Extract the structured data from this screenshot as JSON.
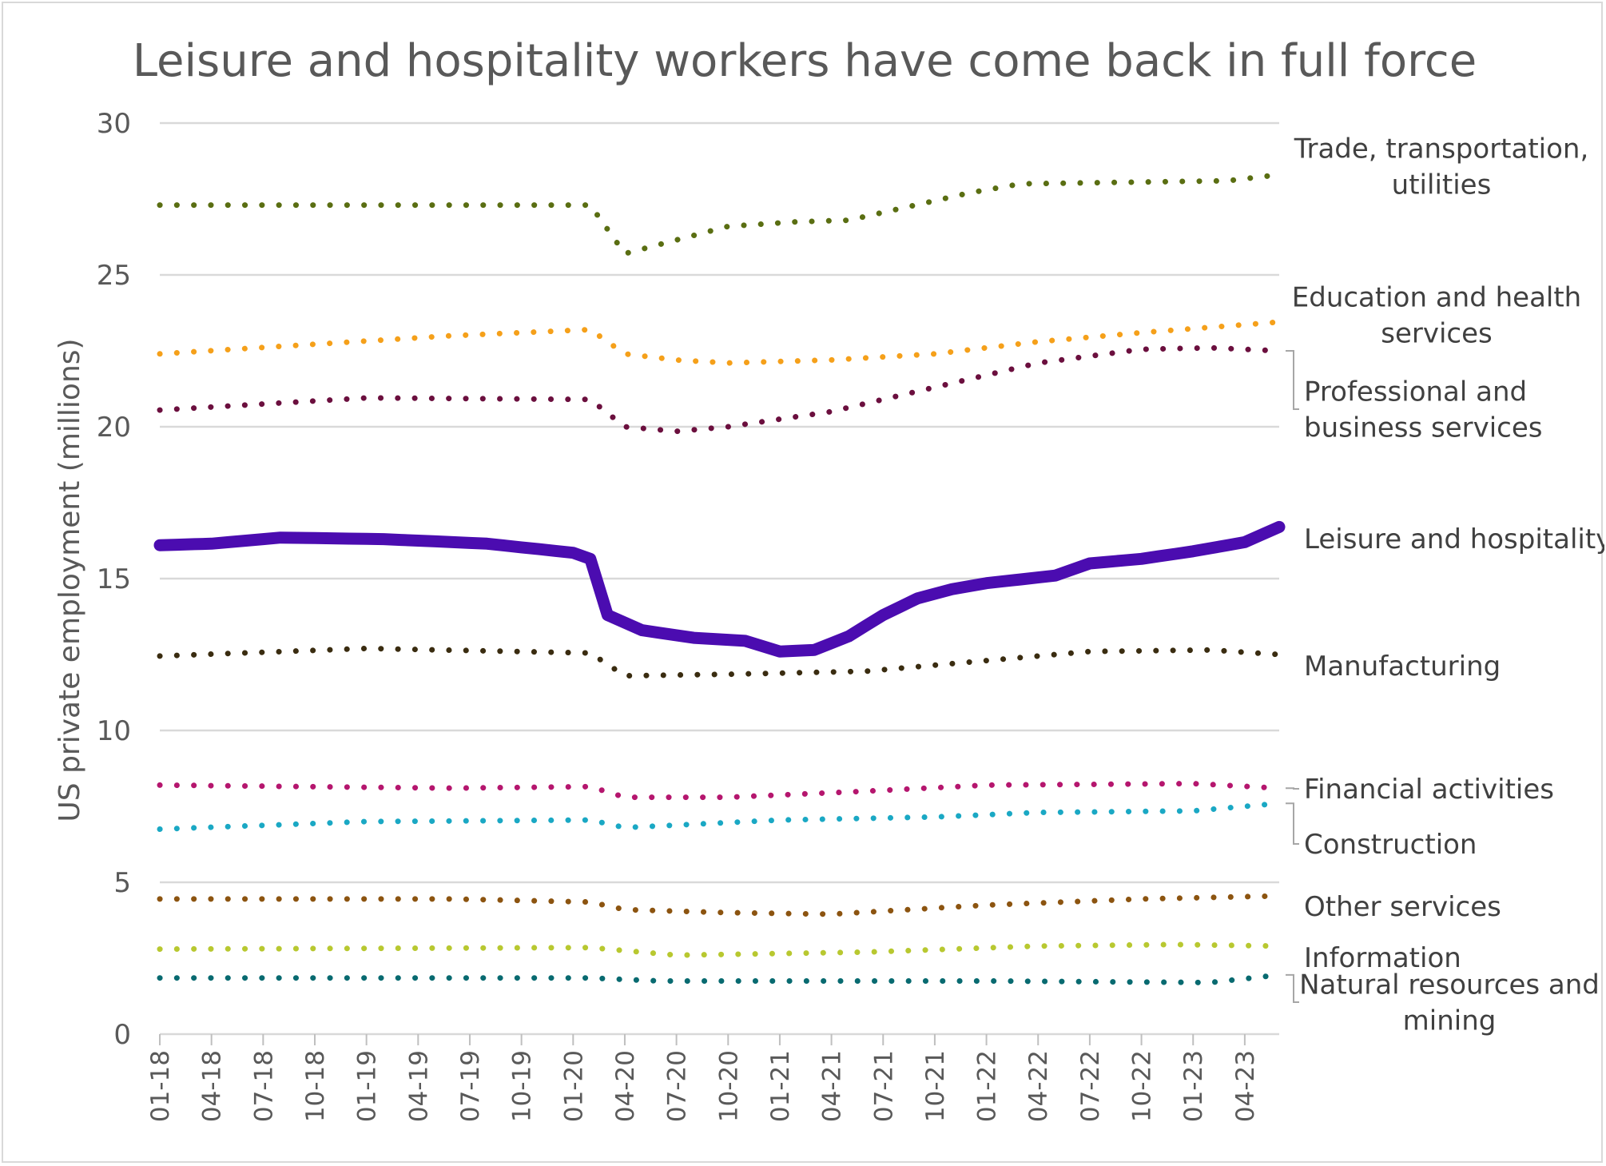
{
  "chart_data": {
    "type": "line",
    "title": "Leisure and hospitality workers have come back in full force",
    "xlabel": "",
    "ylabel": "US private employment (millions)",
    "ylim": [
      0,
      30
    ],
    "yticks": [
      "0",
      "5",
      "10",
      "15",
      "20",
      "25",
      "30"
    ],
    "xticks": [
      "01-18",
      "04-18",
      "07-18",
      "10-18",
      "01-19",
      "04-19",
      "07-19",
      "10-19",
      "01-20",
      "04-20",
      "07-20",
      "10-20",
      "01-21",
      "04-21",
      "07-21",
      "10-21",
      "01-22",
      "04-22",
      "07-22",
      "10-22",
      "01-23",
      "04-23"
    ],
    "x_start": "2018-01",
    "x_end": "2023-06",
    "grid": "horizontal",
    "legend": "direct labels on right",
    "series": [
      {
        "name": "Trade, transportation, utilities",
        "label_lines": [
          "Trade, transportation,",
          "utilities"
        ],
        "color": "#5a6e12",
        "style": "dotted",
        "knots": [
          [
            "2018-01",
            27.3
          ],
          [
            "2020-02",
            27.3
          ],
          [
            "2020-04",
            25.7
          ],
          [
            "2020-06",
            26.0
          ],
          [
            "2020-10",
            26.6
          ],
          [
            "2021-02",
            26.75
          ],
          [
            "2021-05",
            26.8
          ],
          [
            "2021-12",
            27.7
          ],
          [
            "2022-03",
            28.0
          ],
          [
            "2022-09",
            28.05
          ],
          [
            "2023-03",
            28.1
          ],
          [
            "2023-06",
            28.3
          ]
        ]
      },
      {
        "name": "Education and health services",
        "label_lines": [
          "Education and health",
          "services"
        ],
        "color": "#f5a01a",
        "style": "dotted",
        "knots": [
          [
            "2018-01",
            22.4
          ],
          [
            "2019-06",
            23.0
          ],
          [
            "2020-02",
            23.2
          ],
          [
            "2020-04",
            22.4
          ],
          [
            "2020-07",
            22.2
          ],
          [
            "2020-10",
            22.1
          ],
          [
            "2021-04",
            22.2
          ],
          [
            "2021-10",
            22.4
          ],
          [
            "2022-04",
            22.8
          ],
          [
            "2022-10",
            23.1
          ],
          [
            "2023-06",
            23.45
          ]
        ]
      },
      {
        "name": "Professional and business services",
        "label_lines": [
          "Professional and",
          "business services"
        ],
        "color": "#6b0f3e",
        "style": "dotted",
        "knots": [
          [
            "2018-01",
            20.55
          ],
          [
            "2019-01",
            20.95
          ],
          [
            "2020-02",
            20.9
          ],
          [
            "2020-04",
            20.0
          ],
          [
            "2020-07",
            19.85
          ],
          [
            "2020-10",
            20.0
          ],
          [
            "2021-04",
            20.5
          ],
          [
            "2021-10",
            21.3
          ],
          [
            "2022-04",
            22.1
          ],
          [
            "2022-10",
            22.55
          ],
          [
            "2023-02",
            22.6
          ],
          [
            "2023-06",
            22.5
          ]
        ]
      },
      {
        "name": "Leisure and hospitality",
        "label_lines": [
          "Leisure and hospitality"
        ],
        "color": "#4b0cb0",
        "style": "solid",
        "knots": [
          [
            "2018-01",
            16.1
          ],
          [
            "2018-04",
            16.15
          ],
          [
            "2018-08",
            16.35
          ],
          [
            "2019-02",
            16.3
          ],
          [
            "2019-08",
            16.15
          ],
          [
            "2020-01",
            15.85
          ],
          [
            "2020-02",
            15.65
          ],
          [
            "2020-03",
            13.8
          ],
          [
            "2020-05",
            13.3
          ],
          [
            "2020-08",
            13.05
          ],
          [
            "2020-11",
            12.95
          ],
          [
            "2021-01",
            12.6
          ],
          [
            "2021-03",
            12.65
          ],
          [
            "2021-05",
            13.1
          ],
          [
            "2021-07",
            13.8
          ],
          [
            "2021-09",
            14.35
          ],
          [
            "2021-11",
            14.65
          ],
          [
            "2022-01",
            14.85
          ],
          [
            "2022-05",
            15.1
          ],
          [
            "2022-07",
            15.5
          ],
          [
            "2022-10",
            15.65
          ],
          [
            "2023-01",
            15.9
          ],
          [
            "2023-04",
            16.2
          ],
          [
            "2023-06",
            16.7
          ]
        ]
      },
      {
        "name": "Manufacturing",
        "label_lines": [
          "Manufacturing"
        ],
        "color": "#3a2c10",
        "style": "dotted",
        "knots": [
          [
            "2018-01",
            12.45
          ],
          [
            "2019-01",
            12.7
          ],
          [
            "2020-02",
            12.55
          ],
          [
            "2020-04",
            11.8
          ],
          [
            "2020-10",
            11.85
          ],
          [
            "2021-06",
            11.95
          ],
          [
            "2022-01",
            12.3
          ],
          [
            "2022-07",
            12.6
          ],
          [
            "2023-02",
            12.65
          ],
          [
            "2023-06",
            12.5
          ]
        ]
      },
      {
        "name": "Financial activities",
        "label_lines": [
          "Financial activities"
        ],
        "color": "#b5166e",
        "style": "dotted",
        "knots": [
          [
            "2018-01",
            8.2
          ],
          [
            "2019-06",
            8.1
          ],
          [
            "2020-02",
            8.15
          ],
          [
            "2020-04",
            7.8
          ],
          [
            "2020-10",
            7.8
          ],
          [
            "2021-06",
            8.0
          ],
          [
            "2022-01",
            8.2
          ],
          [
            "2023-01",
            8.25
          ],
          [
            "2023-06",
            8.1
          ]
        ]
      },
      {
        "name": "Construction",
        "label_lines": [
          "Construction"
        ],
        "color": "#1aa8c4",
        "style": "dotted",
        "knots": [
          [
            "2018-01",
            6.75
          ],
          [
            "2019-01",
            7.0
          ],
          [
            "2020-02",
            7.05
          ],
          [
            "2020-04",
            6.8
          ],
          [
            "2021-01",
            7.05
          ],
          [
            "2021-10",
            7.15
          ],
          [
            "2022-04",
            7.3
          ],
          [
            "2023-01",
            7.35
          ],
          [
            "2023-06",
            7.6
          ]
        ]
      },
      {
        "name": "Other services",
        "label_lines": [
          "Other services"
        ],
        "color": "#8c5410",
        "style": "dotted",
        "knots": [
          [
            "2018-01",
            4.45
          ],
          [
            "2019-06",
            4.45
          ],
          [
            "2020-02",
            4.35
          ],
          [
            "2020-04",
            4.1
          ],
          [
            "2020-10",
            4.0
          ],
          [
            "2021-04",
            3.95
          ],
          [
            "2022-01",
            4.25
          ],
          [
            "2022-10",
            4.45
          ],
          [
            "2023-06",
            4.55
          ]
        ]
      },
      {
        "name": "Information",
        "label_lines": [
          "Information"
        ],
        "color": "#b8c830",
        "style": "dotted",
        "knots": [
          [
            "2018-01",
            2.8
          ],
          [
            "2020-02",
            2.85
          ],
          [
            "2020-07",
            2.6
          ],
          [
            "2021-06",
            2.7
          ],
          [
            "2022-04",
            2.9
          ],
          [
            "2022-12",
            2.95
          ],
          [
            "2023-06",
            2.9
          ]
        ]
      },
      {
        "name": "Natural resources and mining",
        "label_lines": [
          "Natural resources and",
          "mining"
        ],
        "color": "#086a70",
        "style": "dotted",
        "knots": [
          [
            "2018-01",
            1.85
          ],
          [
            "2020-02",
            1.85
          ],
          [
            "2020-06",
            1.75
          ],
          [
            "2022-01",
            1.75
          ],
          [
            "2023-02",
            1.7
          ],
          [
            "2023-06",
            1.95
          ]
        ]
      }
    ]
  }
}
